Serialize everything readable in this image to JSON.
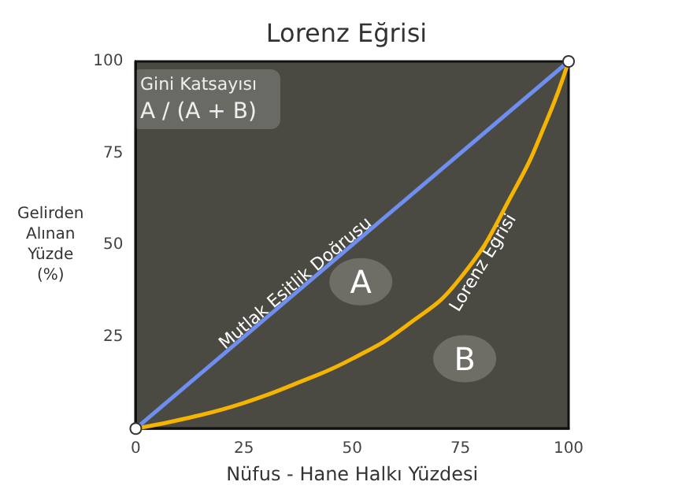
{
  "chart_data": {
    "type": "line",
    "title": "Lorenz Eğrisi",
    "xlabel": "Nüfus - Hane Halkı Yüzdesi",
    "ylabel": "Gelirden\nAlınan\nYüzde\n(%)",
    "x": [
      0,
      12.5,
      25,
      37.5,
      50,
      62.5,
      75,
      87.5,
      95,
      100
    ],
    "series": [
      {
        "name": "Mutlak Eşitlik Doğrusu",
        "color": "#6e8ef0",
        "x": [
          0,
          100
        ],
        "values": [
          0,
          100
        ],
        "marker": "circle"
      },
      {
        "name": "Lorenz Eğrisi",
        "color": "#f5b400",
        "values": [
          0,
          3,
          7,
          12.5,
          19,
          28,
          41,
          65,
          84,
          100
        ]
      }
    ],
    "xlim": [
      0,
      100
    ],
    "ylim": [
      0,
      100
    ],
    "xticks": [
      0,
      25,
      50,
      75,
      100
    ],
    "yticks": [
      25,
      50,
      75,
      100
    ],
    "annotations": [
      "Gini Katsayısı",
      "A / (A + B)",
      {
        "text": "A",
        "x": 52,
        "y": 40
      },
      {
        "text": "B",
        "x": 76,
        "y": 19
      }
    ]
  }
}
